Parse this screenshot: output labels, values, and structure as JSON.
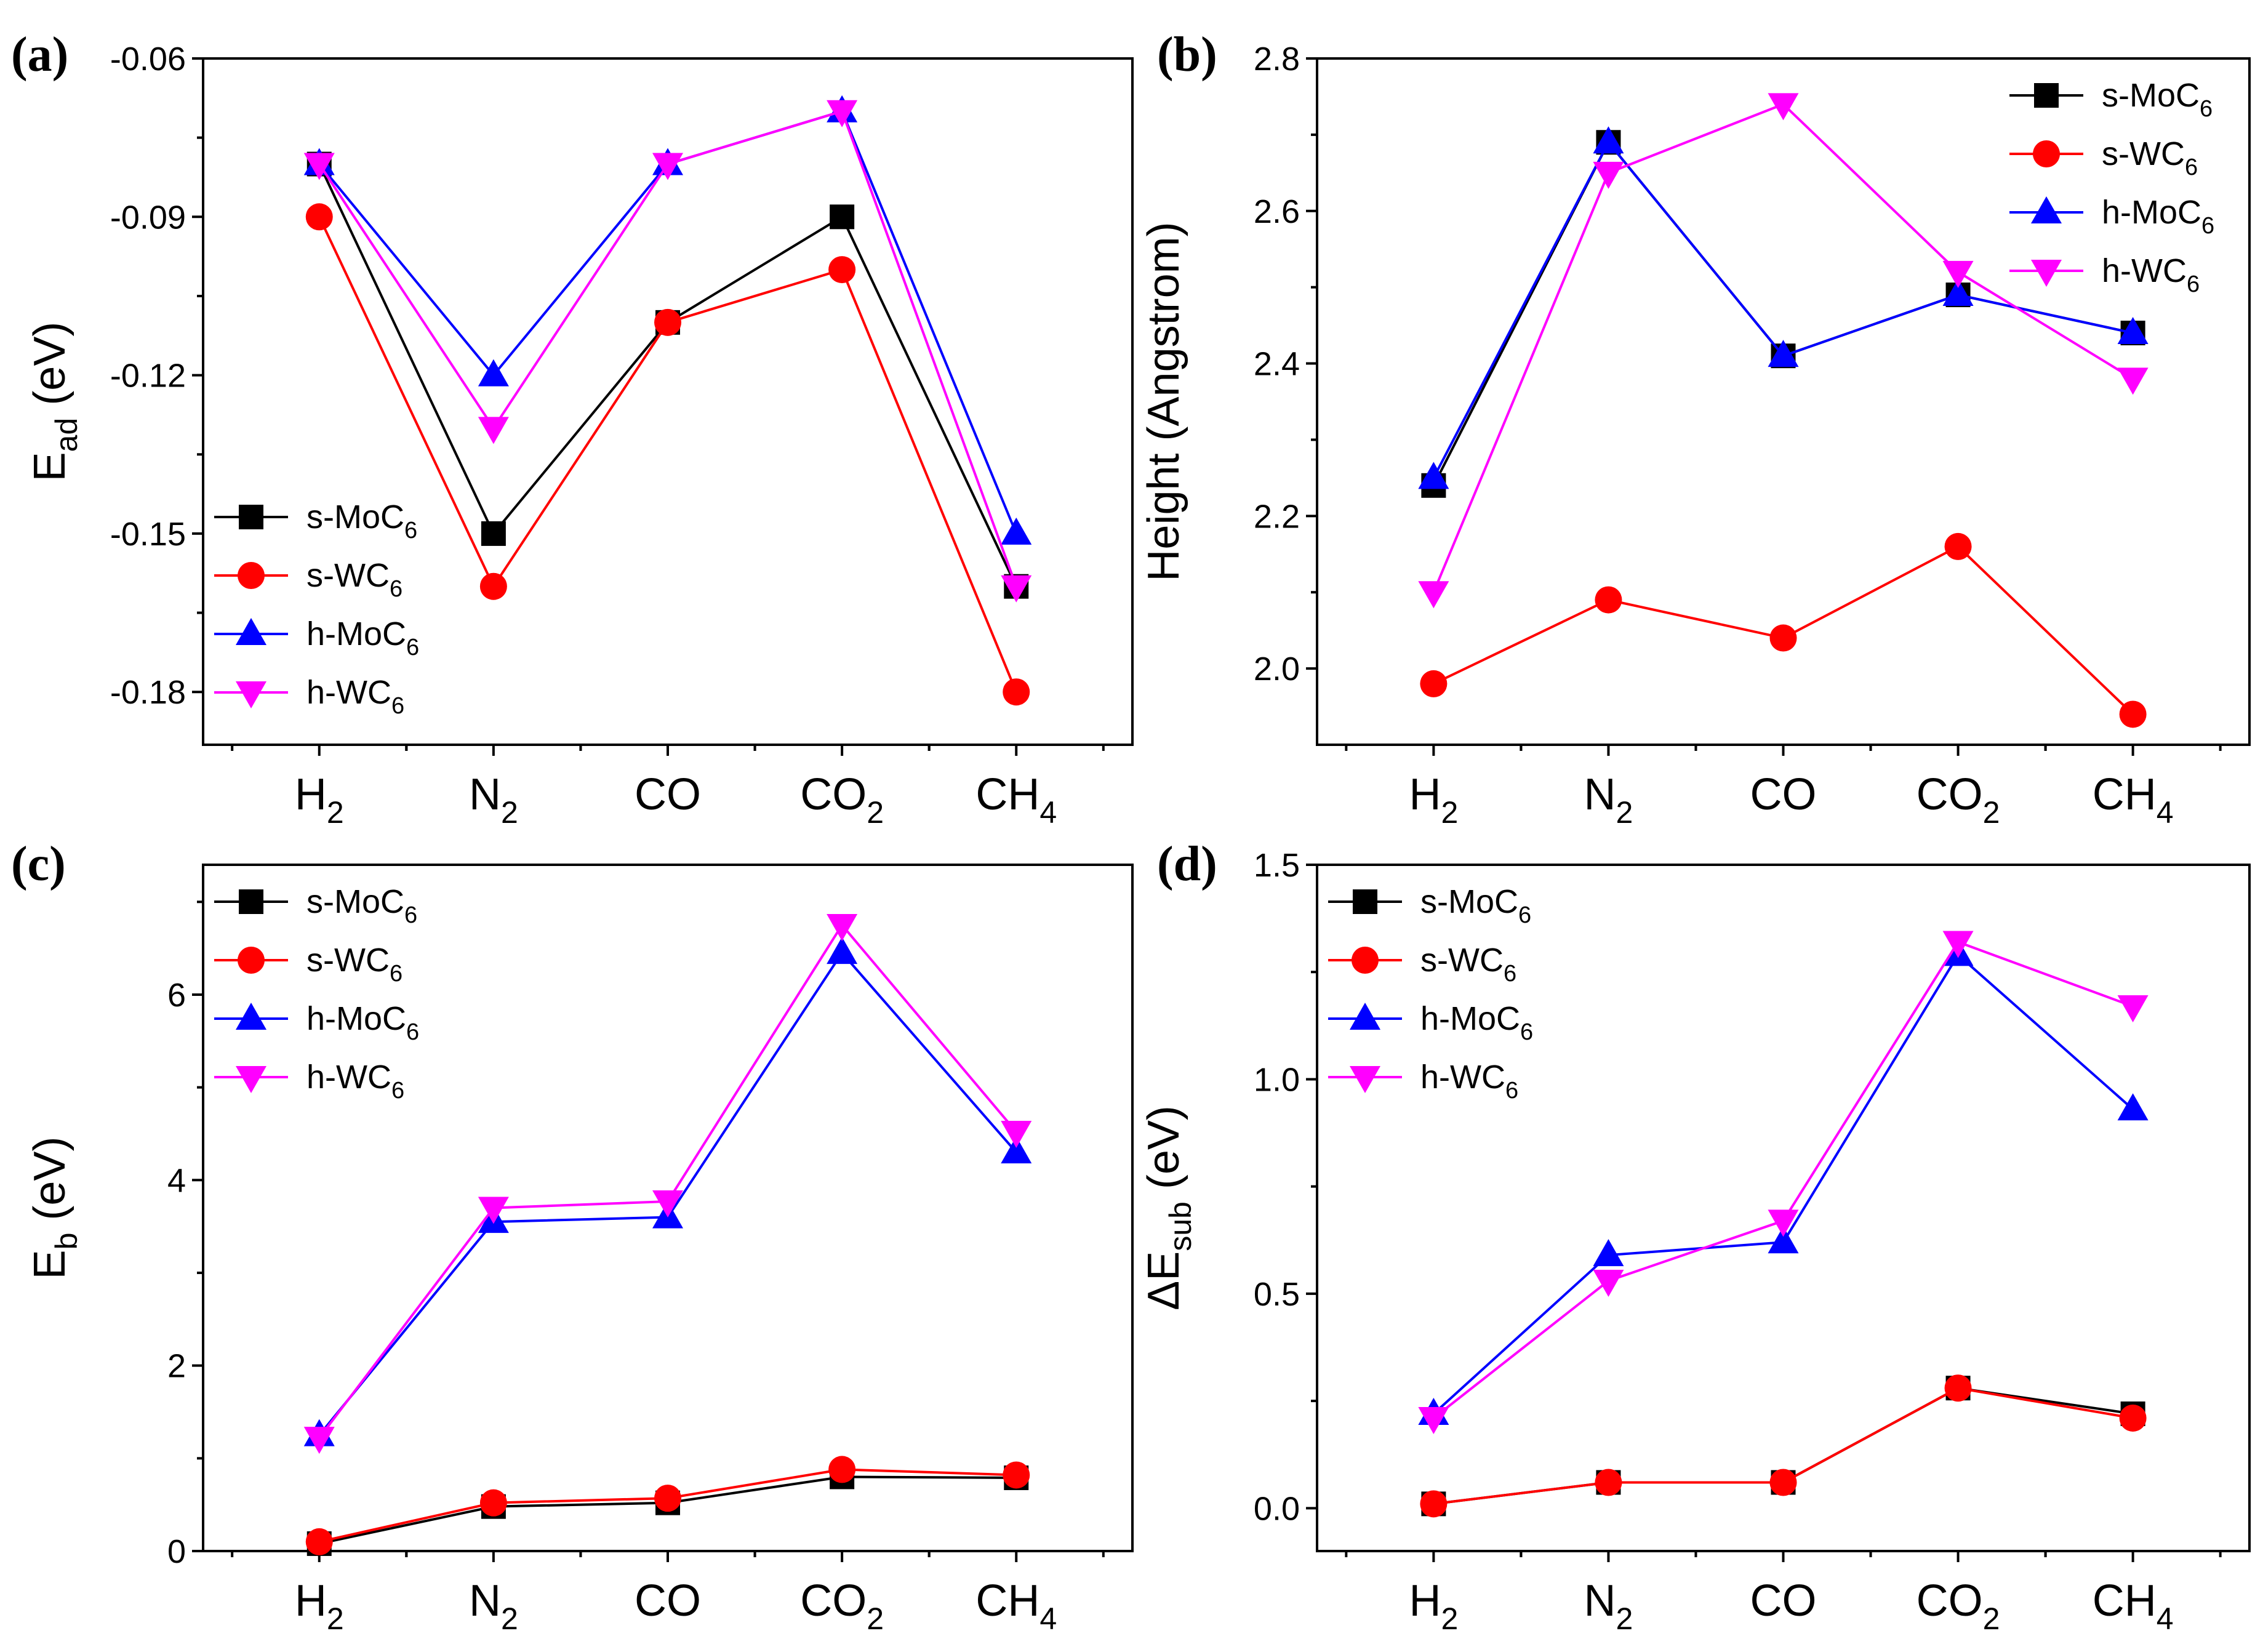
{
  "chart_data": [
    {
      "type": "line",
      "panel_label": "(a)",
      "ylabel_main": "E",
      "ylabel_sub": "ad",
      "ylabel_suffix": " (eV)",
      "ylim": [
        -0.19,
        -0.06
      ],
      "yticks": [
        "-0.06",
        "-0.09",
        "-0.12",
        "-0.15",
        "-0.18"
      ],
      "ytick_values": [
        -0.06,
        -0.09,
        -0.12,
        -0.15,
        -0.18
      ],
      "legend_position": "bottom-left",
      "series": [
        {
          "name": "s-MoC6",
          "label_main": "s-MoC",
          "label_sub": "6",
          "color": "#000000",
          "marker": "square",
          "values": [
            -0.08,
            -0.15,
            -0.11,
            -0.09,
            -0.16
          ]
        },
        {
          "name": "s-WC6",
          "label_main": "s-WC",
          "label_sub": "6",
          "color": "#ff0000",
          "marker": "circle",
          "values": [
            -0.09,
            -0.16,
            -0.11,
            -0.1,
            -0.18
          ]
        },
        {
          "name": "h-MoC6",
          "label_main": "h-MoC",
          "label_sub": "6",
          "color": "#0000ff",
          "marker": "triangle-up",
          "values": [
            -0.08,
            -0.12,
            -0.08,
            -0.07,
            -0.15
          ]
        },
        {
          "name": "h-WC6",
          "label_main": "h-WC",
          "label_sub": "6",
          "color": "#ff00ff",
          "marker": "triangle-down",
          "values": [
            -0.08,
            -0.13,
            -0.08,
            -0.07,
            -0.16
          ]
        }
      ]
    },
    {
      "type": "line",
      "panel_label": "(b)",
      "ylabel_main": "Height (Angstrom)",
      "ylabel_sub": "",
      "ylabel_suffix": "",
      "ylim": [
        1.9,
        2.8
      ],
      "yticks": [
        "2.0",
        "2.2",
        "2.4",
        "2.6",
        "2.8"
      ],
      "ytick_values": [
        2.0,
        2.2,
        2.4,
        2.6,
        2.8
      ],
      "legend_position": "top-right",
      "series": [
        {
          "name": "s-MoC6",
          "label_main": "s-MoC",
          "label_sub": "6",
          "color": "#000000",
          "marker": "square",
          "values": [
            2.24,
            2.69,
            2.41,
            2.49,
            2.44
          ]
        },
        {
          "name": "s-WC6",
          "label_main": "s-WC",
          "label_sub": "6",
          "color": "#ff0000",
          "marker": "circle",
          "values": [
            1.98,
            2.09,
            2.04,
            2.16,
            1.94
          ]
        },
        {
          "name": "h-MoC6",
          "label_main": "h-MoC",
          "label_sub": "6",
          "color": "#0000ff",
          "marker": "triangle-up",
          "values": [
            2.25,
            2.69,
            2.41,
            2.49,
            2.44
          ]
        },
        {
          "name": "h-WC6",
          "label_main": "h-WC",
          "label_sub": "6",
          "color": "#ff00ff",
          "marker": "triangle-down",
          "values": [
            2.1,
            2.65,
            2.74,
            2.52,
            2.38
          ]
        }
      ]
    },
    {
      "type": "line",
      "panel_label": "(c)",
      "ylabel_main": "E",
      "ylabel_sub": "b",
      "ylabel_suffix": " (eV)",
      "ylim": [
        0,
        7.4
      ],
      "yticks": [
        "0",
        "2",
        "4",
        "6"
      ],
      "ytick_values": [
        0,
        2,
        4,
        6
      ],
      "legend_position": "top-left",
      "series": [
        {
          "name": "s-MoC6",
          "label_main": "s-MoC",
          "label_sub": "6",
          "color": "#000000",
          "marker": "square",
          "values": [
            0.08,
            0.48,
            0.52,
            0.8,
            0.79
          ]
        },
        {
          "name": "s-WC6",
          "label_main": "s-WC",
          "label_sub": "6",
          "color": "#ff0000",
          "marker": "circle",
          "values": [
            0.1,
            0.52,
            0.57,
            0.88,
            0.82
          ]
        },
        {
          "name": "h-MoC6",
          "label_main": "h-MoC",
          "label_sub": "6",
          "color": "#0000ff",
          "marker": "triangle-up",
          "values": [
            1.25,
            3.55,
            3.6,
            6.45,
            4.3
          ]
        },
        {
          "name": "h-WC6",
          "label_main": "h-WC",
          "label_sub": "6",
          "color": "#ff00ff",
          "marker": "triangle-down",
          "values": [
            1.22,
            3.7,
            3.77,
            6.75,
            4.52
          ]
        }
      ]
    },
    {
      "type": "line",
      "panel_label": "(d)",
      "ylabel_main": "ΔE",
      "ylabel_sub": "sub",
      "ylabel_suffix": " (eV)",
      "ylim": [
        -0.1,
        1.5
      ],
      "yticks": [
        "0.0",
        "0.5",
        "1.0",
        "1.5"
      ],
      "ytick_values": [
        0.0,
        0.5,
        1.0,
        1.5
      ],
      "legend_position": "top-left",
      "series": [
        {
          "name": "s-MoC6",
          "label_main": "s-MoC",
          "label_sub": "6",
          "color": "#000000",
          "marker": "square",
          "values": [
            0.01,
            0.06,
            0.06,
            0.28,
            0.22
          ]
        },
        {
          "name": "s-WC6",
          "label_main": "s-WC",
          "label_sub": "6",
          "color": "#ff0000",
          "marker": "circle",
          "values": [
            0.01,
            0.06,
            0.06,
            0.28,
            0.21
          ]
        },
        {
          "name": "h-MoC6",
          "label_main": "h-MoC",
          "label_sub": "6",
          "color": "#0000ff",
          "marker": "triangle-up",
          "values": [
            0.22,
            0.59,
            0.62,
            1.29,
            0.93
          ]
        },
        {
          "name": "h-WC6",
          "label_main": "h-WC",
          "label_sub": "6",
          "color": "#ff00ff",
          "marker": "triangle-down",
          "values": [
            0.21,
            0.53,
            0.67,
            1.32,
            1.17
          ]
        }
      ]
    }
  ],
  "categories": [
    {
      "main": "H",
      "sub": "2"
    },
    {
      "main": "N",
      "sub": "2"
    },
    {
      "main": "CO",
      "sub": ""
    },
    {
      "main": "CO",
      "sub": "2"
    },
    {
      "main": "CH",
      "sub": "4"
    }
  ]
}
